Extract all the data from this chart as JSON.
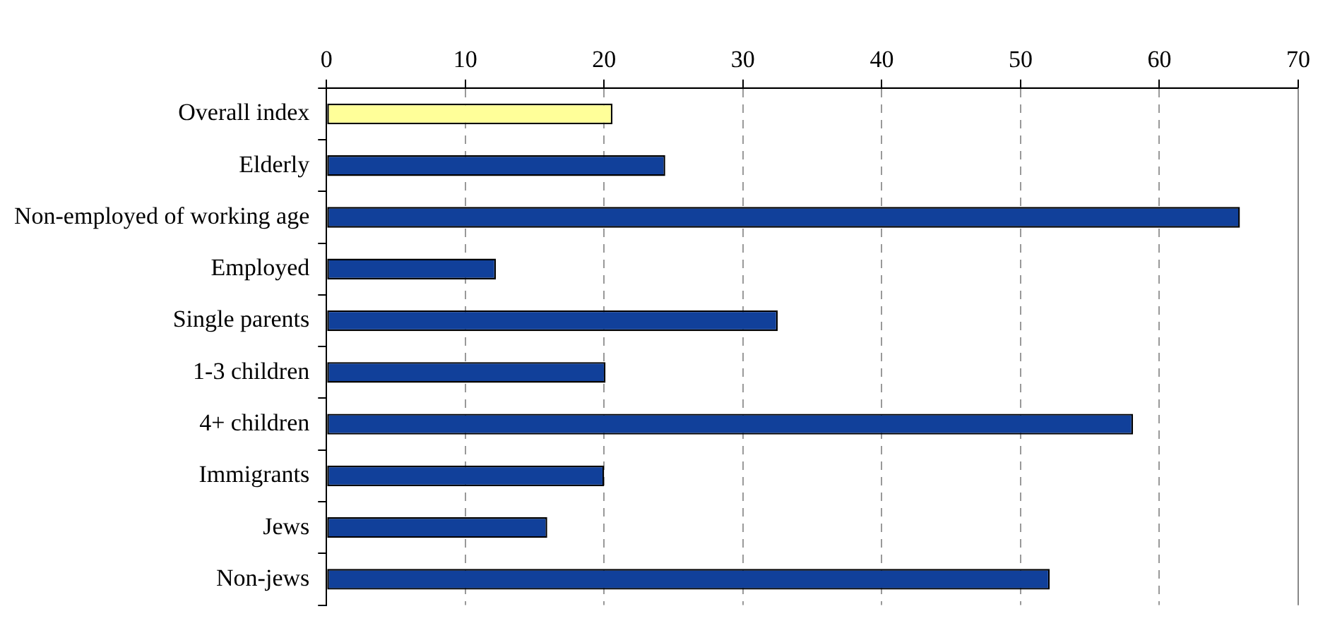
{
  "chart_data": {
    "type": "bar",
    "orientation": "horizontal",
    "categories": [
      "Overall index",
      "Elderly",
      "Non-employed of working age",
      "Employed",
      "Single parents",
      "1-3 children",
      "4+ children",
      "Immigrants",
      "Jews",
      "Non-jews"
    ],
    "values": [
      20.6,
      24.4,
      65.8,
      12.2,
      32.5,
      20.1,
      58.1,
      20.0,
      15.9,
      52.1
    ],
    "colors": [
      "#ffff99",
      "#11409a",
      "#11409a",
      "#11409a",
      "#11409a",
      "#11409a",
      "#11409a",
      "#11409a",
      "#11409a",
      "#11409a"
    ],
    "xlim": [
      0,
      70
    ],
    "xticks": [
      0,
      10,
      20,
      30,
      40,
      50,
      60,
      70
    ],
    "grid": "x",
    "legend": false
  }
}
